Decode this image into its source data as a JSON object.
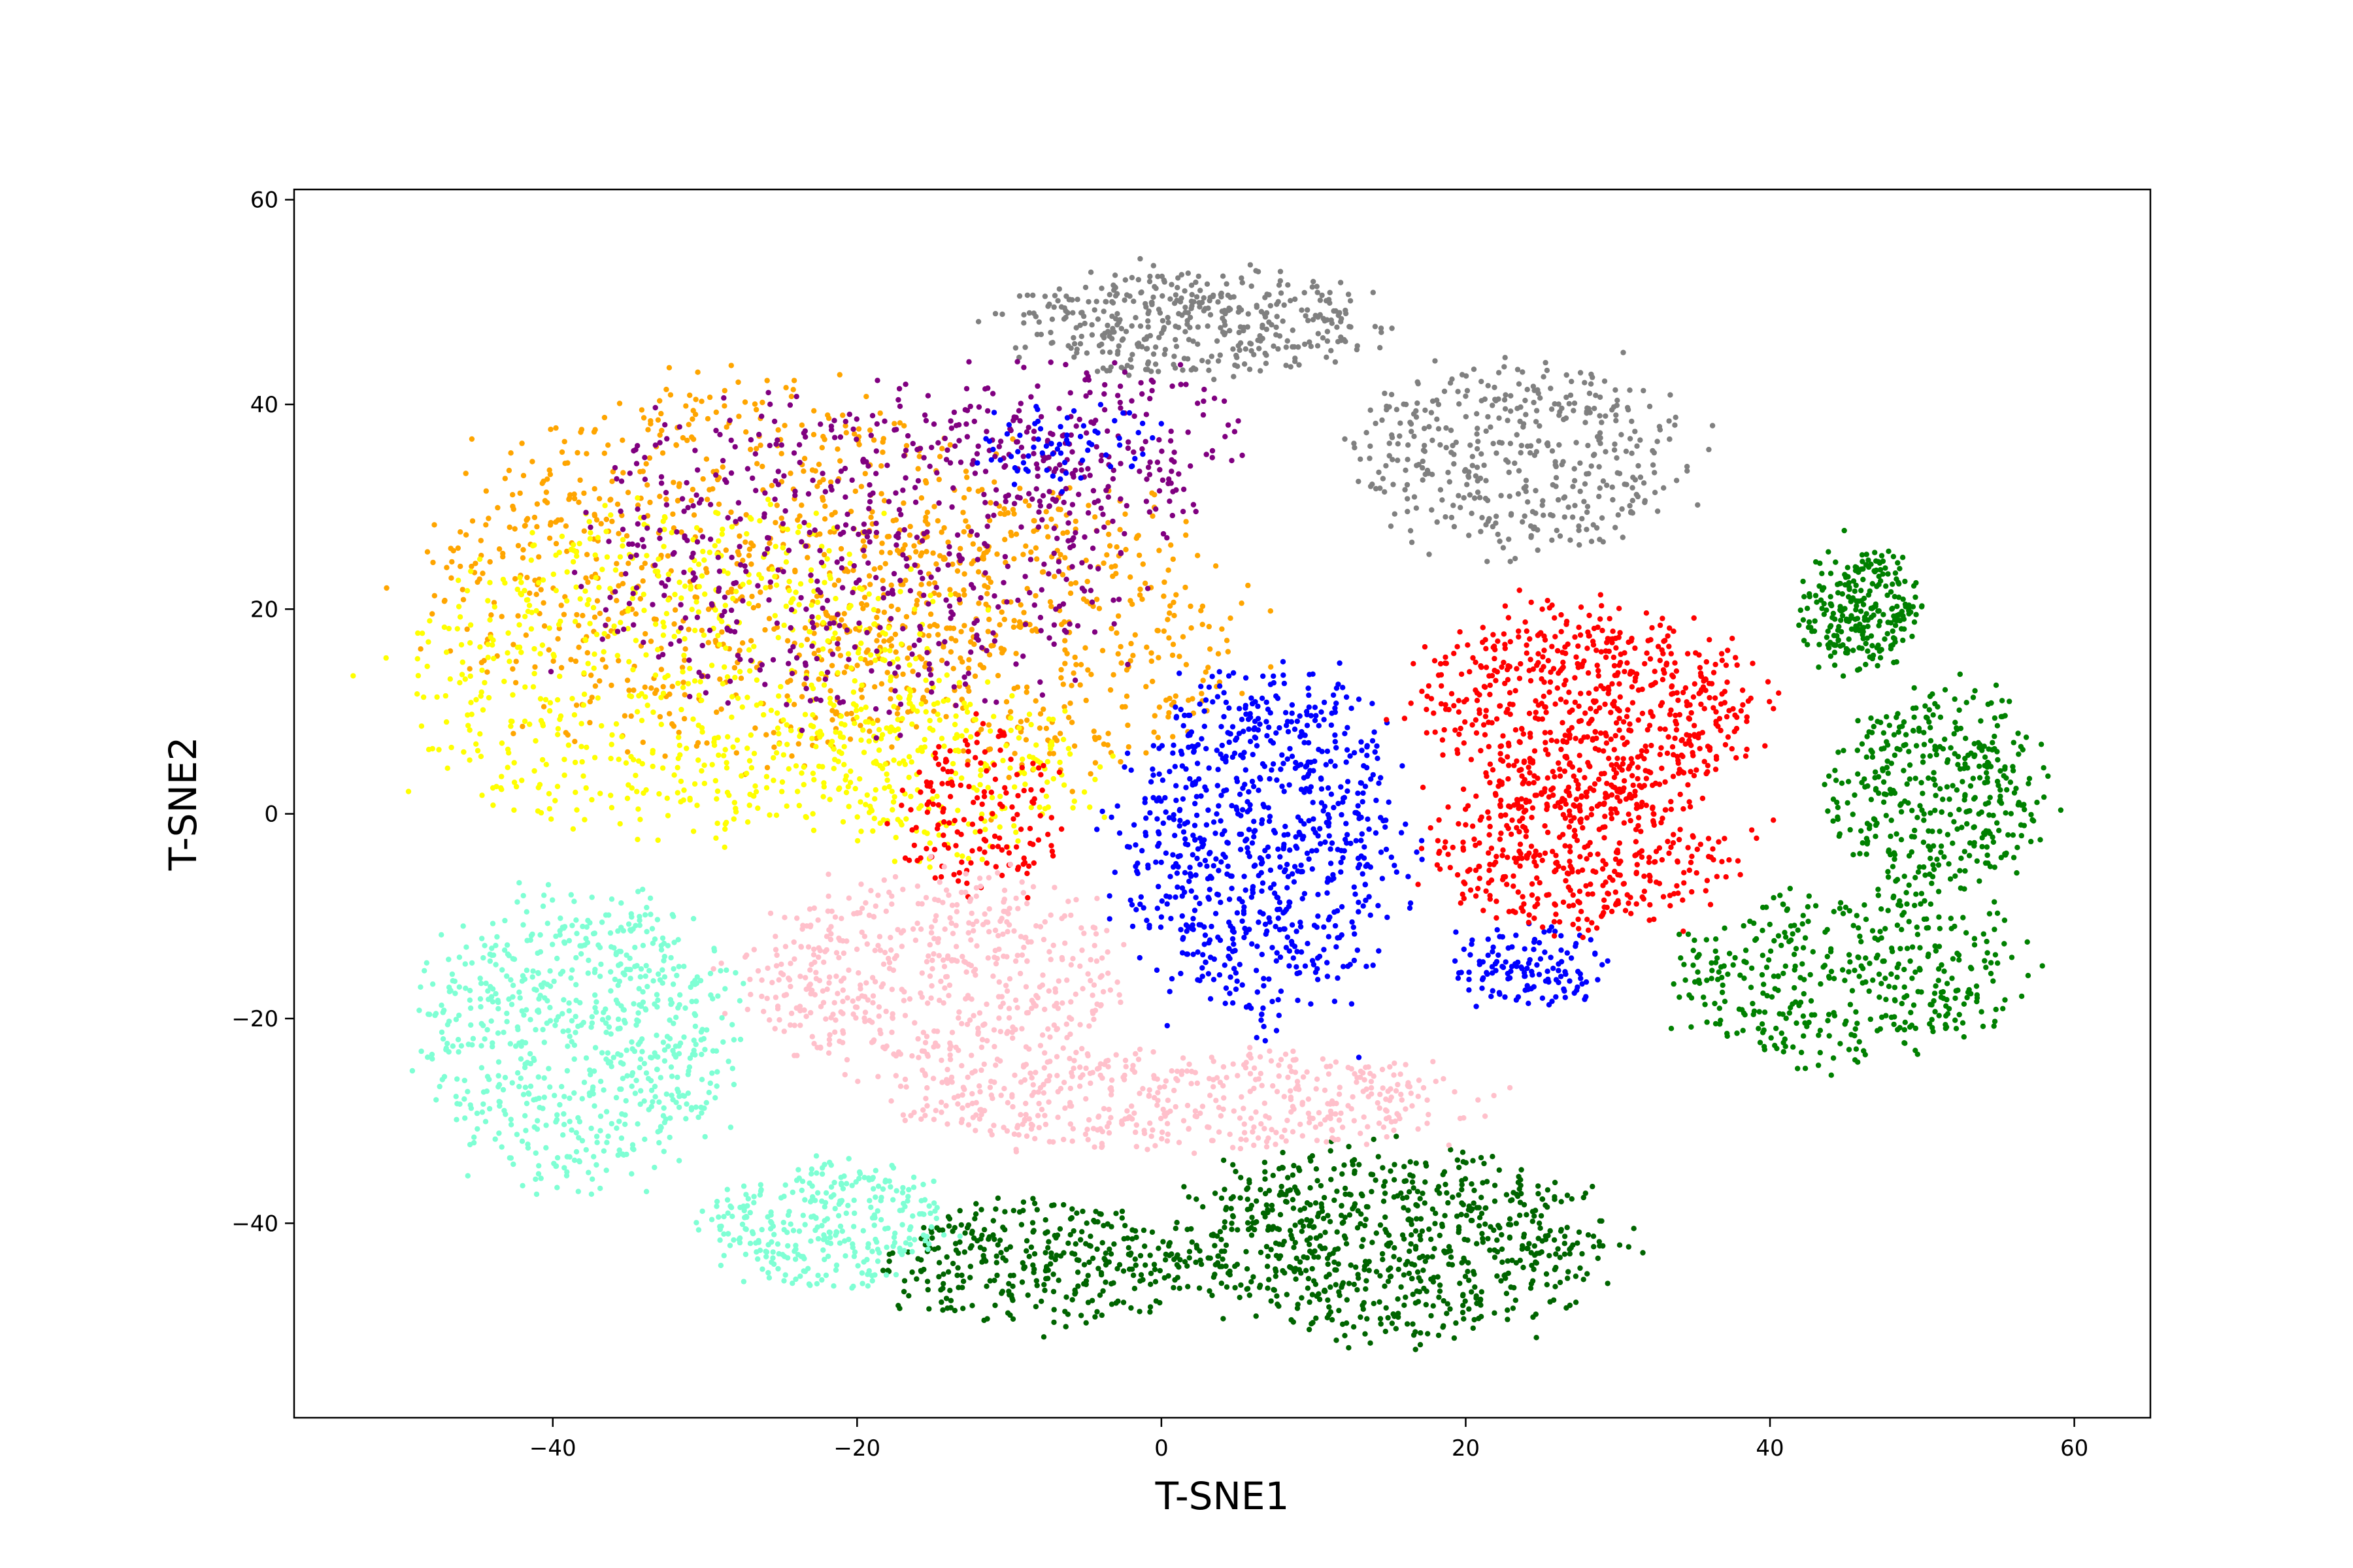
{
  "chart_data": {
    "type": "scatter",
    "title": "",
    "xlabel": "T-SNE1",
    "ylabel": "T-SNE2",
    "xlim": [
      -57,
      65
    ],
    "ylim": [
      -59,
      61
    ],
    "xticks": [
      -40,
      -20,
      0,
      20,
      40,
      60
    ],
    "xtick_labels": [
      "−40",
      "−20",
      "0",
      "20",
      "40",
      "60"
    ],
    "yticks": [
      -40,
      -20,
      0,
      20,
      40,
      60
    ],
    "ytick_labels": [
      "−40",
      "−20",
      "0",
      "20",
      "40",
      "60"
    ],
    "grid": false,
    "legend": "none",
    "series": [
      {
        "color": "#808080",
        "clusters": [
          {
            "cx": 2,
            "cy": 48,
            "rx": 12,
            "ry": 5,
            "n": 420
          },
          {
            "cx": 24,
            "cy": 35,
            "rx": 11,
            "ry": 9,
            "n": 420
          }
        ]
      },
      {
        "color": "#FFA500",
        "clusters": [
          {
            "cx": -28,
            "cy": 24,
            "rx": 20,
            "ry": 18,
            "n": 780
          },
          {
            "cx": -8,
            "cy": 18,
            "rx": 14,
            "ry": 14,
            "n": 420
          }
        ]
      },
      {
        "color": "#FFFF00",
        "clusters": [
          {
            "cx": -32,
            "cy": 14,
            "rx": 18,
            "ry": 16,
            "n": 700
          },
          {
            "cx": -14,
            "cy": 4,
            "rx": 10,
            "ry": 8,
            "n": 240
          }
        ]
      },
      {
        "color": "#800080",
        "clusters": [
          {
            "cx": -20,
            "cy": 26,
            "rx": 18,
            "ry": 16,
            "n": 560
          },
          {
            "cx": -5,
            "cy": 36,
            "rx": 10,
            "ry": 8,
            "n": 200
          }
        ]
      },
      {
        "color": "#0000FF",
        "clusters": [
          {
            "cx": 7,
            "cy": -3,
            "rx": 9,
            "ry": 17,
            "n": 820
          },
          {
            "cx": 24,
            "cy": -15,
            "rx": 5,
            "ry": 4,
            "n": 130
          },
          {
            "cx": -6,
            "cy": 36,
            "rx": 6,
            "ry": 4,
            "n": 70
          }
        ]
      },
      {
        "color": "#FF0000",
        "clusters": [
          {
            "cx": 28,
            "cy": 10,
            "rx": 11,
            "ry": 10,
            "n": 700
          },
          {
            "cx": 28,
            "cy": -4,
            "rx": 10,
            "ry": 7,
            "n": 400
          },
          {
            "cx": -12,
            "cy": 0,
            "rx": 5,
            "ry": 8,
            "n": 160
          }
        ]
      },
      {
        "color": "#008000",
        "clusters": [
          {
            "cx": 46,
            "cy": 20,
            "rx": 4,
            "ry": 6,
            "n": 260
          },
          {
            "cx": 51,
            "cy": 2,
            "rx": 7,
            "ry": 10,
            "n": 400
          },
          {
            "cx": 45,
            "cy": -16,
            "rx": 11,
            "ry": 8,
            "n": 420
          }
        ]
      },
      {
        "color": "#006400",
        "clusters": [
          {
            "cx": 15,
            "cy": -42,
            "rx": 14,
            "ry": 9,
            "n": 780
          },
          {
            "cx": -8,
            "cy": -44,
            "rx": 10,
            "ry": 6,
            "n": 340
          }
        ]
      },
      {
        "color": "#FFC0CB",
        "clusters": [
          {
            "cx": -15,
            "cy": -16,
            "rx": 12,
            "ry": 10,
            "n": 560
          },
          {
            "cx": 2,
            "cy": -28,
            "rx": 18,
            "ry": 5,
            "n": 500
          }
        ]
      },
      {
        "color": "#7FFFD4",
        "clusters": [
          {
            "cx": -38,
            "cy": -22,
            "rx": 10,
            "ry": 14,
            "n": 720
          },
          {
            "cx": -22,
            "cy": -40,
            "rx": 8,
            "ry": 6,
            "n": 320
          }
        ]
      }
    ]
  }
}
